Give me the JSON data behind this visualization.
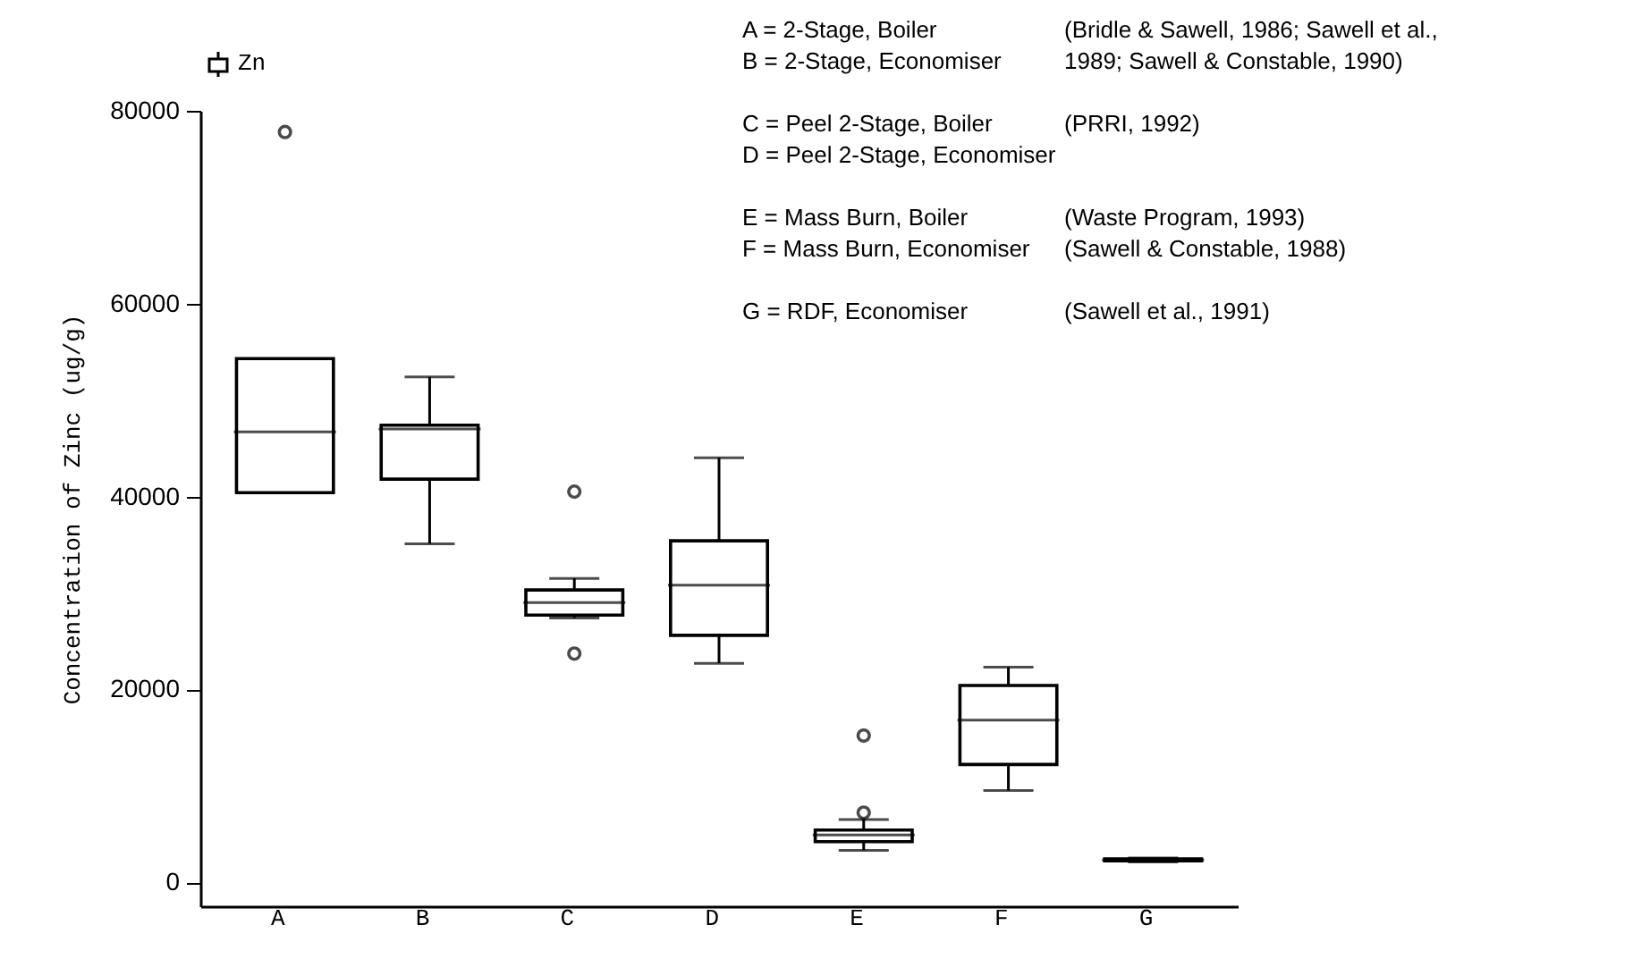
{
  "chart_data": {
    "type": "box",
    "ylabel": "Concentration of Zinc (ug/g)",
    "categories": [
      "A",
      "B",
      "C",
      "D",
      "E",
      "F",
      "G"
    ],
    "ylim": [
      -2500,
      80000
    ],
    "yticks": [
      0,
      20000,
      40000,
      60000,
      80000
    ],
    "grid": false,
    "legend": "top left",
    "series": [
      {
        "name": "Zn",
        "color": "#000000",
        "boxes": [
          {
            "low": 40400,
            "q1": 40400,
            "median": 46700,
            "q3": 54300,
            "high": 54300,
            "outliers": [
              77800
            ]
          },
          {
            "low": 35100,
            "q1": 41800,
            "median": 47000,
            "q3": 47400,
            "high": 52400
          },
          {
            "low": 27400,
            "q1": 27700,
            "median": 29000,
            "q3": 30300,
            "high": 31500,
            "outliers": [
              40500,
              23700
            ]
          },
          {
            "low": 22700,
            "q1": 25600,
            "median": 30800,
            "q3": 35400,
            "high": 44000
          },
          {
            "low": 3300,
            "q1": 4200,
            "median": 4900,
            "q3": 5400,
            "high": 6500,
            "outliers": [
              15200,
              7200
            ]
          },
          {
            "low": 9500,
            "q1": 12200,
            "median": 16800,
            "q3": 20400,
            "high": 22300
          },
          {
            "low": 2100,
            "q1": 2200,
            "median": 2300,
            "q3": 2400,
            "high": 2500
          }
        ]
      }
    ],
    "annotations": [
      "A = 2-Stage, Boiler",
      "(Bridle & Sawell, 1986; Sawell et al.,",
      "B = 2-Stage, Economiser",
      " 1989; Sawell & Constable, 1990)",
      "C = Peel 2-Stage, Boiler",
      "(PRRI, 1992)",
      "D = Peel 2-Stage, Economiser",
      "E = Mass Burn, Boiler",
      "(Waste Program, 1993)",
      "F = Mass Burn, Economiser",
      "(Sawell & Constable, 1988)",
      "G = RDF, Economiser",
      "(Sawell et al., 1991)"
    ]
  }
}
